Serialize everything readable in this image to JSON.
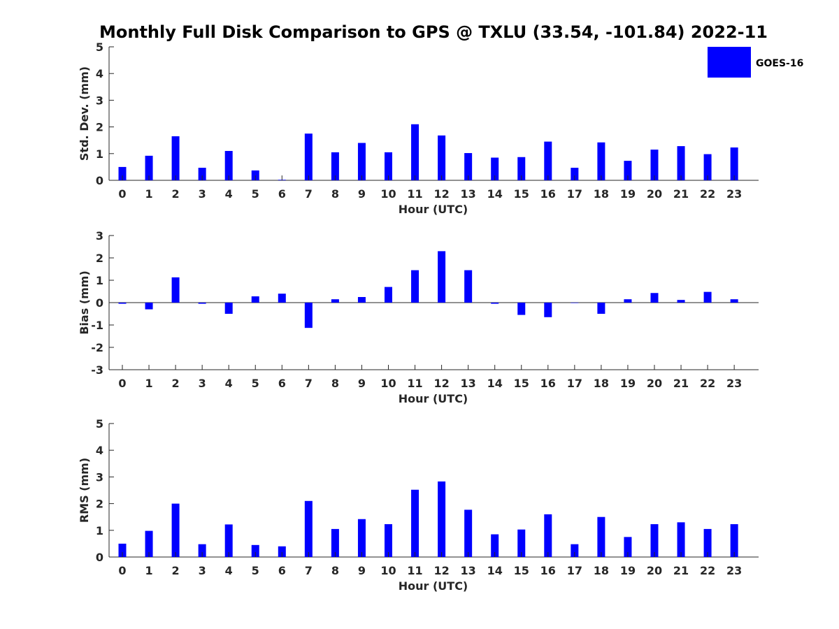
{
  "chart_data": {
    "title": "Monthly Full Disk Comparison to GPS @ TXLU (33.54, -101.84) 2022-11",
    "legend": {
      "placement": "top-right",
      "entries": [
        "GOES-16"
      ]
    },
    "series_color": "#0000ff",
    "axis_color": "#262626",
    "panels": [
      {
        "type": "bar",
        "xlabel": "Hour (UTC)",
        "ylabel": "Std. Dev. (mm)",
        "ylim": [
          0,
          5
        ],
        "yticks": [
          0,
          1,
          2,
          3,
          4,
          5
        ],
        "categories": [
          "0",
          "1",
          "2",
          "3",
          "4",
          "5",
          "6",
          "7",
          "8",
          "9",
          "10",
          "11",
          "12",
          "13",
          "14",
          "15",
          "16",
          "17",
          "18",
          "19",
          "20",
          "21",
          "22",
          "23"
        ],
        "series": [
          {
            "name": "GOES-16",
            "values": [
              0.5,
              0.92,
              1.65,
              0.47,
              1.1,
              0.37,
              0.02,
              1.75,
              1.05,
              1.4,
              1.05,
              2.1,
              1.68,
              1.02,
              0.85,
              0.87,
              1.45,
              0.47,
              1.42,
              0.73,
              1.15,
              1.28,
              0.98,
              1.23
            ]
          }
        ]
      },
      {
        "type": "bar",
        "xlabel": "Hour (UTC)",
        "ylabel": "Bias (mm)",
        "ylim": [
          -3,
          3
        ],
        "yticks": [
          -3,
          -2,
          -1,
          0,
          1,
          2,
          3
        ],
        "categories": [
          "0",
          "1",
          "2",
          "3",
          "4",
          "5",
          "6",
          "7",
          "8",
          "9",
          "10",
          "11",
          "12",
          "13",
          "14",
          "15",
          "16",
          "17",
          "18",
          "19",
          "20",
          "21",
          "22",
          "23"
        ],
        "series": [
          {
            "name": "GOES-16",
            "values": [
              -0.05,
              -0.3,
              1.13,
              -0.05,
              -0.5,
              0.28,
              0.4,
              -1.13,
              0.15,
              0.25,
              0.7,
              1.45,
              2.3,
              1.45,
              -0.05,
              -0.55,
              -0.65,
              0.0,
              -0.5,
              0.15,
              0.43,
              0.12,
              0.48,
              0.15
            ]
          }
        ]
      },
      {
        "type": "bar",
        "xlabel": "Hour (UTC)",
        "ylabel": "RMS (mm)",
        "ylim": [
          0,
          5
        ],
        "yticks": [
          0,
          1,
          2,
          3,
          4,
          5
        ],
        "categories": [
          "0",
          "1",
          "2",
          "3",
          "4",
          "5",
          "6",
          "7",
          "8",
          "9",
          "10",
          "11",
          "12",
          "13",
          "14",
          "15",
          "16",
          "17",
          "18",
          "19",
          "20",
          "21",
          "22",
          "23"
        ],
        "series": [
          {
            "name": "GOES-16",
            "values": [
              0.5,
              0.98,
              2.0,
              0.48,
              1.22,
              0.45,
              0.4,
              2.1,
              1.05,
              1.42,
              1.23,
              2.52,
              2.83,
              1.77,
              0.85,
              1.03,
              1.6,
              0.48,
              1.5,
              0.75,
              1.23,
              1.3,
              1.05,
              1.23
            ]
          }
        ]
      }
    ]
  }
}
